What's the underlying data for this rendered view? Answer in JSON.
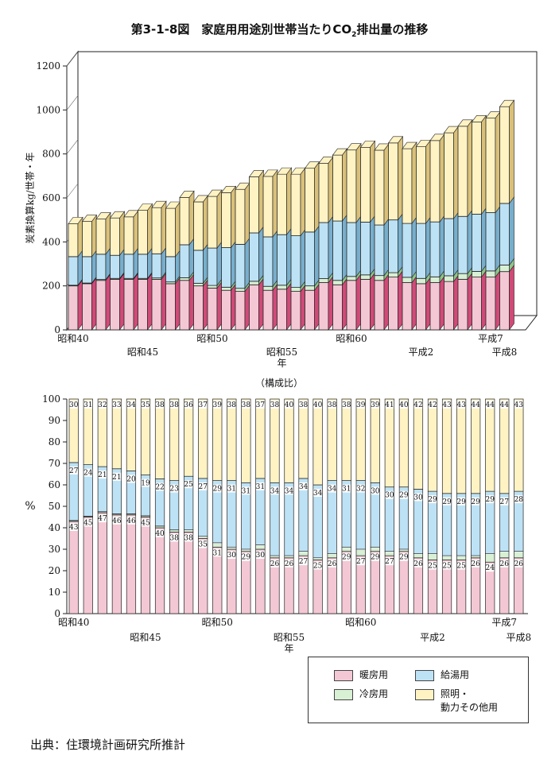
{
  "title": {
    "prefix": "第3-1-8図　家庭用用途別世帯当たりCO",
    "sub": "2",
    "suffix": "排出量の推移"
  },
  "source": "出典：住環境計画研究所推計",
  "colors": {
    "heating": "#f3c8d4",
    "heating_dark": "#d04a78",
    "cooling": "#d8f0d4",
    "hotwater": "#bde2f5",
    "lighting": "#fff3c4",
    "outline": "#222222"
  },
  "legend": [
    {
      "key": "heating",
      "label": "暖房用"
    },
    {
      "key": "hotwater",
      "label": "給湯用"
    },
    {
      "key": "cooling",
      "label": "冷房用"
    },
    {
      "key": "lighting",
      "label": "照明・\n動力その他用"
    }
  ],
  "chart_data": [
    {
      "type": "bar",
      "stacked": true,
      "ylabel": "炭素換算kg/世帯・年",
      "ylim": [
        0,
        1200
      ],
      "yticks": [
        0,
        200,
        400,
        600,
        800,
        1000,
        1200
      ],
      "x_labels": [
        {
          "index": 0,
          "text": "昭和40",
          "row": 0
        },
        {
          "index": 5,
          "text": "昭和45",
          "row": 1
        },
        {
          "index": 10,
          "text": "昭和50",
          "row": 0
        },
        {
          "index": 15,
          "text": "昭和55\n年",
          "row": 1
        },
        {
          "index": 20,
          "text": "昭和60",
          "row": 0
        },
        {
          "index": 25,
          "text": "平成2",
          "row": 1
        },
        {
          "index": 30,
          "text": "平成7",
          "row": 0
        },
        {
          "index": 31,
          "text": "平成8",
          "row": 1
        }
      ],
      "series": [
        {
          "name": "暖房用",
          "key": "heating",
          "values": [
            200,
            210,
            225,
            230,
            230,
            230,
            230,
            210,
            225,
            200,
            190,
            180,
            175,
            205,
            180,
            185,
            175,
            180,
            215,
            205,
            225,
            230,
            225,
            240,
            215,
            210,
            215,
            220,
            230,
            240,
            240,
            265
          ]
        },
        {
          "name": "冷房用",
          "key": "cooling",
          "values": [
            3,
            3,
            4,
            4,
            4,
            4,
            6,
            8,
            12,
            12,
            12,
            14,
            14,
            16,
            18,
            18,
            18,
            20,
            18,
            20,
            18,
            20,
            22,
            20,
            24,
            24,
            26,
            26,
            26,
            26,
            28,
            30
          ]
        },
        {
          "name": "給湯用",
          "key": "hotwater",
          "values": [
            130,
            120,
            115,
            105,
            110,
            110,
            110,
            115,
            150,
            150,
            170,
            180,
            200,
            220,
            225,
            230,
            235,
            245,
            255,
            270,
            245,
            240,
            230,
            240,
            245,
            250,
            250,
            260,
            260,
            260,
            265,
            280
          ]
        },
        {
          "name": "照明・動力その他用",
          "key": "lighting",
          "values": [
            150,
            160,
            160,
            170,
            170,
            200,
            210,
            220,
            215,
            220,
            235,
            250,
            250,
            255,
            275,
            275,
            280,
            290,
            270,
            300,
            330,
            340,
            340,
            350,
            340,
            350,
            370,
            390,
            410,
            420,
            430,
            440
          ]
        }
      ]
    },
    {
      "type": "bar",
      "stacked": true,
      "subtitle": "（構成比）",
      "ylabel": "%",
      "ylim": [
        0,
        100
      ],
      "yticks": [
        0,
        10,
        20,
        30,
        40,
        50,
        60,
        70,
        80,
        90,
        100
      ],
      "x_labels": [
        {
          "index": 0,
          "text": "昭和40",
          "row": 0
        },
        {
          "index": 5,
          "text": "昭和45",
          "row": 1
        },
        {
          "index": 10,
          "text": "昭和50",
          "row": 0
        },
        {
          "index": 15,
          "text": "昭和55\n年",
          "row": 1
        },
        {
          "index": 20,
          "text": "昭和60",
          "row": 0
        },
        {
          "index": 25,
          "text": "平成2",
          "row": 1
        },
        {
          "index": 30,
          "text": "平成7",
          "row": 0
        },
        {
          "index": 31,
          "text": "平成8",
          "row": 1
        }
      ],
      "series": [
        {
          "name": "暖房用",
          "key": "heating",
          "values": [
            43,
            45,
            47,
            46,
            46,
            45,
            40,
            38,
            38,
            35,
            31,
            30,
            29,
            30,
            26,
            26,
            27,
            25,
            26,
            29,
            27,
            29,
            27,
            29,
            26,
            25,
            25,
            25,
            26,
            24,
            26,
            26
          ],
          "labels": [
            "43",
            "45",
            "47",
            "46",
            "46",
            "45",
            "40",
            "38",
            "38",
            "35",
            "31",
            "30",
            "29",
            "30",
            "26",
            "26",
            "27",
            "25",
            "26",
            "29",
            "27",
            "29",
            "27",
            "29",
            "26",
            "25",
            "25",
            "25",
            "26",
            "24",
            "26",
            "26"
          ]
        },
        {
          "name": "冷房用",
          "key": "cooling",
          "values": [
            0.4,
            0.4,
            0.5,
            0.5,
            0.5,
            0.6,
            0.8,
            1,
            1,
            1,
            2,
            1,
            1,
            2,
            1,
            1,
            2,
            1,
            2,
            2,
            3,
            2,
            2,
            1,
            2,
            3,
            2,
            2,
            1,
            4,
            3,
            3
          ],
          "labels": [
            "",
            "",
            "",
            "",
            "",
            "",
            "",
            "",
            "1",
            "1",
            "2",
            "1",
            "1",
            "2",
            "1",
            "1",
            "2",
            "1",
            "2",
            "2",
            "3",
            "2",
            "2",
            "1",
            "2",
            "3",
            "2",
            "2",
            "1",
            "4",
            "3",
            "3"
          ]
        },
        {
          "name": "給湯用",
          "key": "hotwater",
          "values": [
            27,
            24,
            21,
            21,
            20,
            19,
            22,
            23,
            25,
            27,
            29,
            31,
            31,
            31,
            34,
            34,
            34,
            34,
            34,
            31,
            32,
            30,
            30,
            29,
            30,
            29,
            29,
            29,
            29,
            29,
            27,
            28
          ],
          "labels": [
            "27",
            "24",
            "21",
            "21",
            "20",
            "19",
            "22",
            "23",
            "25",
            "27",
            "29",
            "31",
            "31",
            "31",
            "34",
            "34",
            "34",
            "34",
            "34",
            "31",
            "32",
            "30",
            "30",
            "29",
            "30",
            "29",
            "29",
            "29",
            "29",
            "29",
            "27",
            "28"
          ]
        },
        {
          "name": "照明・動力その他用",
          "key": "lighting",
          "values": [
            30,
            31,
            32,
            33,
            34,
            35,
            38,
            38,
            36,
            37,
            39,
            38,
            38,
            37,
            38,
            40,
            38,
            40,
            38,
            38,
            39,
            39,
            41,
            40,
            42,
            42,
            43,
            43,
            44,
            44,
            44,
            43
          ],
          "labels": [
            "30",
            "31",
            "32",
            "33",
            "34",
            "35",
            "38",
            "38",
            "36",
            "37",
            "39",
            "38",
            "38",
            "37",
            "38",
            "40",
            "38",
            "40",
            "38",
            "38",
            "39",
            "39",
            "41",
            "40",
            "42",
            "42",
            "43",
            "43",
            "44",
            "44",
            "44",
            "43"
          ]
        }
      ]
    }
  ]
}
